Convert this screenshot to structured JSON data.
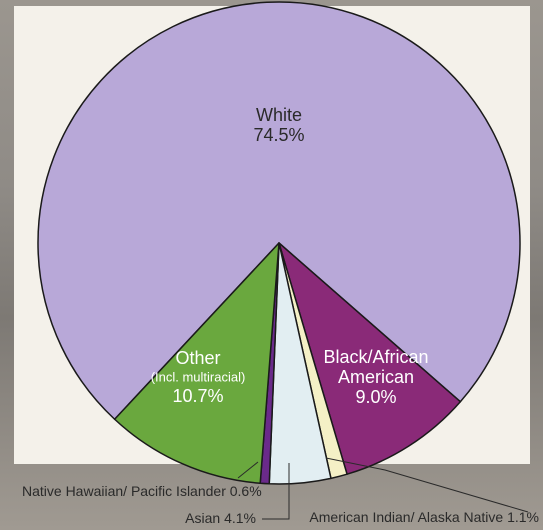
{
  "chart_data": {
    "type": "pie",
    "slices": [
      {
        "label_lines": [
          "White",
          "74.5%"
        ],
        "value": 74.5,
        "color": "#b8a8d8"
      },
      {
        "label_lines": [
          "Black/African",
          "American",
          "9.0%"
        ],
        "value": 9.0,
        "color": "#8a2a78"
      },
      {
        "label_lines": [
          "American Indian/ Alaska Native 1.1%"
        ],
        "value": 1.1,
        "color": "#f4f0c6"
      },
      {
        "label_lines": [
          "Asian 4.1%"
        ],
        "value": 4.1,
        "color": "#e2eef2"
      },
      {
        "label_lines": [
          "Native Hawaiian/ Pacific Islander 0.6%"
        ],
        "value": 0.6,
        "color": "#6a2a8a"
      },
      {
        "label_lines": [
          "Other",
          "(Incl. multiracial)",
          "10.7%"
        ],
        "value": 10.7,
        "color": "#6aa83e"
      }
    ]
  }
}
